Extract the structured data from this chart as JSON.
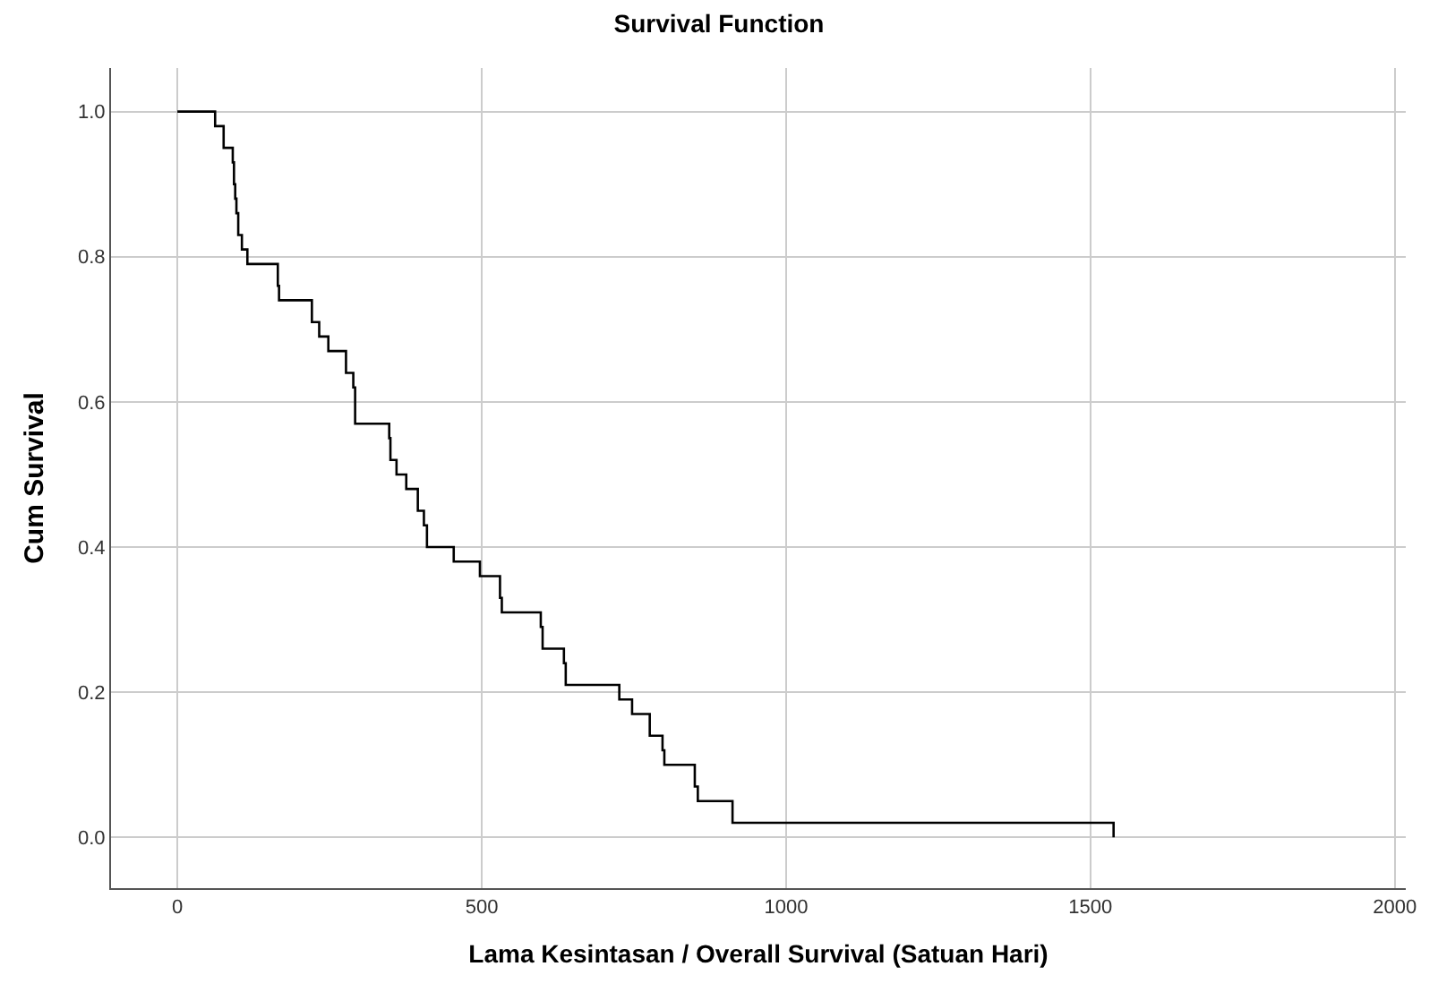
{
  "chart_data": {
    "type": "step",
    "title": "Survival Function",
    "xlabel": "Lama Kesintasan / Overall Survival (Satuan Hari)",
    "ylabel": "Cum Survival",
    "x": [
      0,
      62,
      76,
      91,
      93,
      95,
      97,
      100,
      106,
      115,
      165,
      167,
      221,
      233,
      248,
      277,
      289,
      292,
      348,
      350,
      360,
      376,
      395,
      405,
      410,
      454,
      497,
      530,
      533,
      597,
      600,
      635,
      638,
      726,
      747,
      776,
      797,
      800,
      850,
      855,
      912,
      1538
    ],
    "values": [
      1.0,
      0.98,
      0.95,
      0.93,
      0.9,
      0.88,
      0.86,
      0.83,
      0.81,
      0.79,
      0.76,
      0.74,
      0.71,
      0.69,
      0.67,
      0.64,
      0.62,
      0.57,
      0.55,
      0.52,
      0.5,
      0.48,
      0.45,
      0.43,
      0.4,
      0.38,
      0.36,
      0.33,
      0.31,
      0.29,
      0.26,
      0.24,
      0.21,
      0.19,
      0.17,
      0.14,
      0.12,
      0.1,
      0.07,
      0.05,
      0.02,
      0.0
    ],
    "color": "#000000",
    "xlim": [
      -109,
      2018
    ],
    "ylim": [
      -0.07,
      1.06
    ],
    "xticks": [
      0,
      500,
      1000,
      1500,
      2000
    ],
    "yticks": [
      {
        "value": 0,
        "label": "0.0"
      },
      {
        "value": 0.2,
        "label": "0.2"
      },
      {
        "value": 0.4,
        "label": "0.4"
      },
      {
        "value": 0.6,
        "label": "0.6"
      },
      {
        "value": 0.8,
        "label": "0.8"
      },
      {
        "value": 1,
        "label": "1.0"
      }
    ],
    "grid": true
  }
}
